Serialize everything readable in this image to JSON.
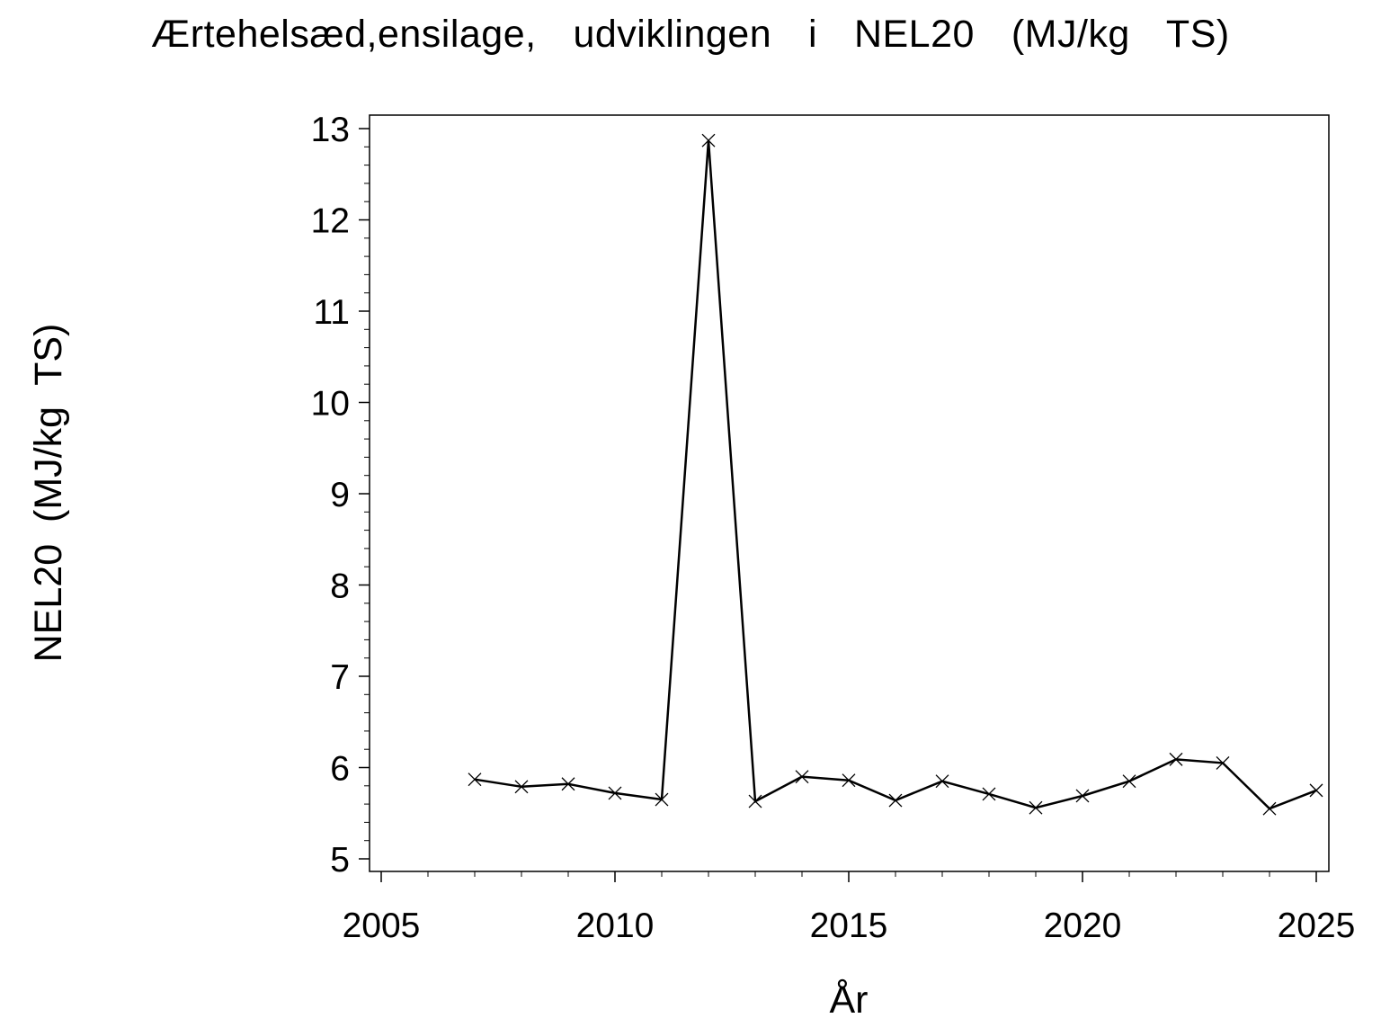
{
  "chart_data": {
    "type": "line",
    "title": "Ærtehelsæd,ensilage,  udviklingen  i  NEL20  (MJ/kg  TS)",
    "xlabel": "År",
    "ylabel": "NEL20  (MJ/kg  TS)",
    "xlim": [
      2005,
      2025
    ],
    "ylim": [
      5,
      13
    ],
    "x_ticks": [
      "2005",
      "2010",
      "2015",
      "2020",
      "2025"
    ],
    "y_ticks": [
      "5",
      "6",
      "7",
      "8",
      "9",
      "10",
      "11",
      "12",
      "13"
    ],
    "grid": false,
    "marker": "x",
    "line_color": "#000000",
    "series": [
      {
        "x": [
          2007,
          2008,
          2009,
          2010,
          2011,
          2012,
          2013,
          2014,
          2015,
          2016,
          2017,
          2018,
          2019,
          2020,
          2021,
          2022,
          2023,
          2024,
          2025
        ],
        "values": [
          5.87,
          5.79,
          5.82,
          5.72,
          5.65,
          12.87,
          5.63,
          5.9,
          5.86,
          5.64,
          5.85,
          5.71,
          5.56,
          5.69,
          5.85,
          6.09,
          6.05,
          5.55,
          5.75
        ]
      }
    ]
  }
}
